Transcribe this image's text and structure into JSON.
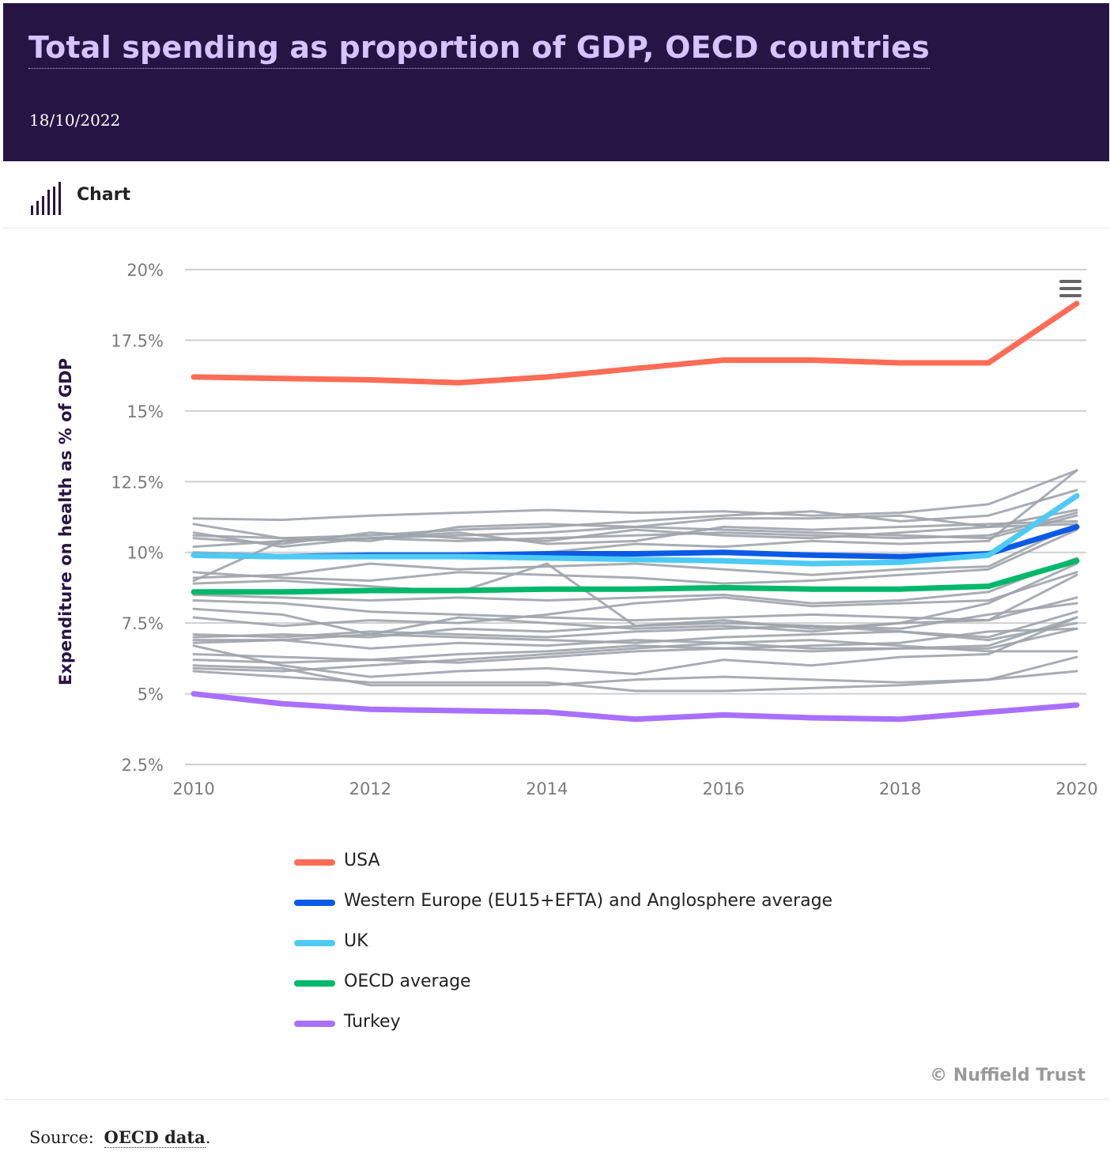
{
  "header": {
    "title": "Total spending as proportion of GDP, OECD countries",
    "date": "18/10/2022"
  },
  "tabs": [
    {
      "label": "Chart",
      "icon": "bar-chart-icon"
    }
  ],
  "credit": "© Nuffield Trust",
  "source": {
    "prefix": "Source:",
    "link_text": "OECD data",
    "suffix": "."
  },
  "colors": {
    "header_bg": "#261544",
    "title": "#d6c3ff",
    "grid": "#cfcfcf",
    "other_countries": "#9ea3ab"
  },
  "chart_data": {
    "type": "line",
    "ylabel": "Expenditure on health as % of GDP",
    "x": [
      2010,
      2011,
      2012,
      2013,
      2014,
      2015,
      2016,
      2017,
      2018,
      2019,
      2020
    ],
    "x_ticks": [
      2010,
      2012,
      2014,
      2016,
      2018,
      2020
    ],
    "x_tick_labels": [
      "2010",
      "2012",
      "2014",
      "2016",
      "2018",
      "2020"
    ],
    "y_ticks": [
      2.5,
      5,
      7.5,
      10,
      12.5,
      15,
      17.5,
      20
    ],
    "y_tick_labels": [
      "2.5%",
      "5%",
      "7.5%",
      "10%",
      "12.5%",
      "15%",
      "17.5%",
      "20%"
    ],
    "ylim": [
      2.5,
      20
    ],
    "grid": true,
    "legend_position": "bottom",
    "series": [
      {
        "name": "USA",
        "color": "#ff6c56",
        "values": [
          16.2,
          16.15,
          16.1,
          16.0,
          16.2,
          16.5,
          16.8,
          16.8,
          16.7,
          16.7,
          18.8
        ]
      },
      {
        "name": "Western Europe (EU15+EFTA) and Anglosphere average",
        "color": "#0a5ae6",
        "values": [
          9.9,
          9.85,
          9.9,
          9.9,
          9.95,
          9.95,
          10.0,
          9.9,
          9.85,
          9.95,
          10.9
        ]
      },
      {
        "name": "UK",
        "color": "#4ecbf5",
        "values": [
          9.9,
          9.85,
          9.85,
          9.85,
          9.8,
          9.75,
          9.7,
          9.6,
          9.65,
          9.9,
          12.0
        ]
      },
      {
        "name": "OECD average",
        "color": "#00b86b",
        "values": [
          8.6,
          8.6,
          8.65,
          8.65,
          8.7,
          8.7,
          8.75,
          8.7,
          8.7,
          8.8,
          9.7
        ]
      },
      {
        "name": "Turkey",
        "color": "#a970ff",
        "values": [
          5.0,
          4.65,
          4.45,
          4.4,
          4.35,
          4.1,
          4.25,
          4.15,
          4.1,
          4.35,
          4.6
        ]
      }
    ],
    "other_series": [
      [
        11.2,
        11.15,
        11.3,
        11.4,
        11.5,
        11.4,
        11.45,
        11.3,
        11.4,
        11.7,
        12.9
      ],
      [
        11.0,
        10.5,
        10.6,
        10.8,
        10.9,
        11.1,
        11.3,
        11.45,
        11.1,
        11.3,
        12.2
      ],
      [
        10.6,
        10.5,
        10.4,
        10.9,
        11.0,
        10.9,
        11.2,
        11.2,
        11.3,
        10.9,
        11.5
      ],
      [
        10.2,
        10.4,
        10.5,
        10.6,
        10.7,
        10.9,
        10.8,
        10.7,
        10.6,
        10.5,
        11.3
      ],
      [
        10.5,
        10.3,
        10.7,
        10.5,
        10.4,
        10.8,
        10.6,
        10.5,
        10.7,
        10.9,
        11.0
      ],
      [
        10.7,
        10.2,
        10.5,
        10.4,
        10.5,
        10.6,
        10.7,
        10.6,
        10.5,
        10.6,
        11.4
      ],
      [
        9.0,
        10.4,
        10.5,
        10.7,
        10.3,
        10.4,
        10.9,
        10.8,
        10.9,
        11.0,
        11.1
      ],
      [
        10.0,
        9.9,
        9.8,
        9.9,
        10.0,
        10.3,
        10.2,
        10.4,
        10.3,
        10.4,
        12.9
      ],
      [
        9.1,
        9.2,
        9.6,
        9.4,
        9.5,
        9.6,
        9.4,
        9.2,
        9.4,
        9.5,
        11.0
      ],
      [
        9.3,
        9.1,
        9.0,
        9.3,
        9.2,
        9.1,
        8.9,
        9.0,
        9.2,
        9.4,
        10.8
      ],
      [
        8.9,
        9.0,
        8.8,
        8.6,
        9.6,
        7.4,
        7.5,
        7.4,
        7.3,
        7.8,
        8.2
      ],
      [
        8.3,
        8.2,
        7.9,
        7.8,
        7.7,
        7.6,
        7.7,
        7.8,
        7.7,
        7.6,
        8.4
      ],
      [
        8.5,
        8.4,
        8.3,
        8.4,
        8.3,
        8.4,
        8.5,
        8.2,
        8.3,
        8.6,
        9.8
      ],
      [
        7.7,
        7.4,
        7.6,
        7.5,
        7.8,
        8.2,
        8.4,
        8.1,
        8.2,
        8.3,
        9.3
      ],
      [
        7.0,
        7.1,
        7.0,
        7.3,
        7.2,
        7.4,
        7.6,
        7.3,
        7.5,
        7.6,
        9.2
      ],
      [
        6.8,
        6.9,
        7.1,
        7.0,
        6.9,
        6.8,
        7.0,
        7.1,
        7.2,
        7.0,
        7.9
      ],
      [
        7.1,
        7.0,
        7.2,
        7.1,
        7.0,
        7.2,
        7.3,
        7.4,
        7.2,
        6.9,
        7.5
      ],
      [
        6.4,
        6.3,
        6.2,
        6.4,
        6.5,
        6.7,
        6.6,
        6.5,
        6.6,
        6.7,
        7.7
      ],
      [
        6.2,
        6.1,
        6.2,
        6.1,
        6.3,
        6.5,
        6.6,
        6.7,
        6.8,
        7.2,
        7.3
      ],
      [
        5.9,
        5.8,
        6.0,
        6.2,
        6.4,
        6.6,
        6.8,
        6.9,
        6.7,
        6.5,
        6.5
      ],
      [
        6.7,
        6.0,
        5.6,
        5.8,
        5.9,
        5.7,
        6.2,
        6.0,
        6.3,
        6.4,
        7.7
      ],
      [
        5.8,
        5.6,
        5.4,
        5.4,
        5.4,
        5.1,
        5.1,
        5.2,
        5.3,
        5.5,
        6.3
      ],
      [
        6.0,
        5.9,
        5.3,
        5.3,
        5.3,
        5.5,
        5.6,
        5.5,
        5.4,
        5.5,
        5.8
      ],
      [
        8.0,
        7.8,
        7.1,
        7.7,
        7.5,
        7.3,
        7.4,
        7.2,
        7.5,
        8.2,
        9.6
      ],
      [
        6.9,
        6.9,
        6.6,
        6.8,
        6.7,
        6.9,
        6.8,
        6.6,
        6.6,
        6.6,
        7.3
      ]
    ]
  }
}
